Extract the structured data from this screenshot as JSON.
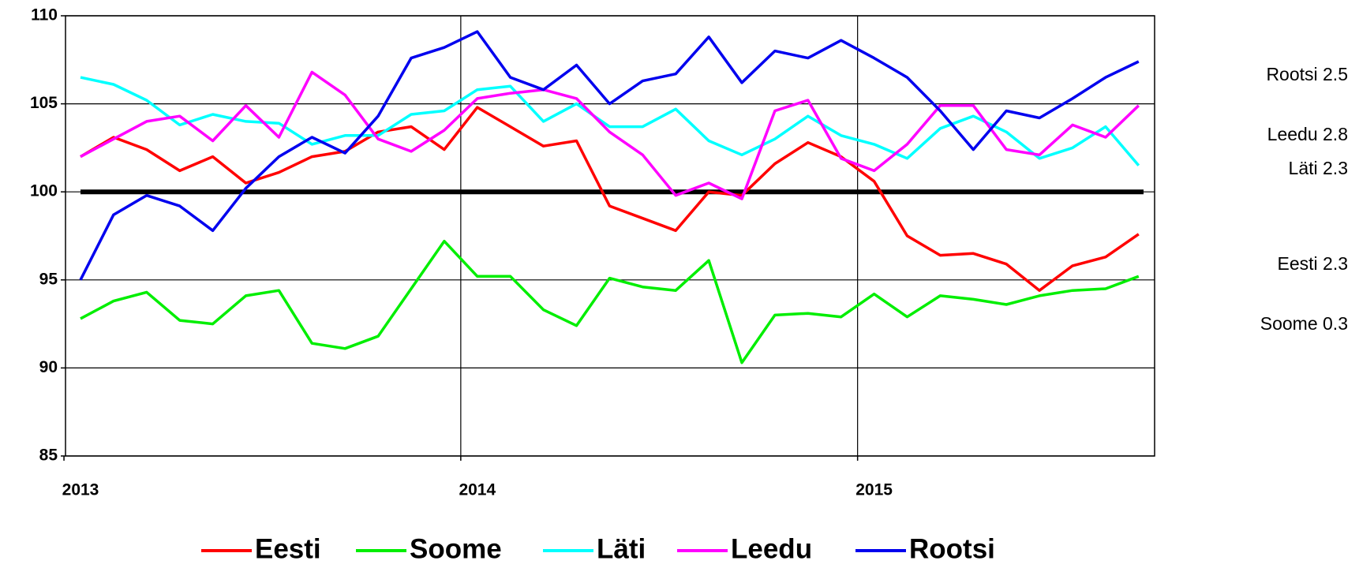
{
  "chart_data": {
    "type": "line",
    "categories": [
      "2013",
      null,
      null,
      null,
      null,
      null,
      null,
      null,
      null,
      null,
      null,
      null,
      "2014",
      null,
      null,
      null,
      null,
      null,
      null,
      null,
      null,
      null,
      null,
      null,
      "2015",
      null,
      null,
      null,
      null,
      null,
      null,
      null,
      null
    ],
    "series": [
      {
        "name": "Eesti",
        "color": "#ff0000",
        "values": [
          102.0,
          103.1,
          102.4,
          101.2,
          102.0,
          100.5,
          101.1,
          102.0,
          102.3,
          103.4,
          103.7,
          102.4,
          104.8,
          103.7,
          102.6,
          102.9,
          99.2,
          98.5,
          97.8,
          100.0,
          99.8,
          101.6,
          102.8,
          102.0,
          100.6,
          97.5,
          96.4,
          96.5,
          95.9,
          94.4,
          95.8,
          96.3,
          97.6
        ]
      },
      {
        "name": "Soome",
        "color": "#00ee00",
        "values": [
          92.8,
          93.8,
          94.3,
          92.7,
          92.5,
          94.1,
          94.4,
          91.4,
          91.1,
          91.8,
          94.5,
          97.2,
          95.2,
          95.2,
          93.3,
          92.4,
          95.1,
          94.6,
          94.4,
          96.1,
          90.3,
          93.0,
          93.1,
          92.9,
          94.2,
          92.9,
          94.1,
          93.9,
          93.6,
          94.1,
          94.4,
          94.5,
          95.2
        ]
      },
      {
        "name": "Läti",
        "color": "#00ffff",
        "values": [
          106.5,
          106.1,
          105.2,
          103.8,
          104.4,
          104.0,
          103.9,
          102.7,
          103.2,
          103.2,
          104.4,
          104.6,
          105.8,
          106.0,
          104.0,
          105.0,
          103.7,
          103.7,
          104.7,
          102.9,
          102.1,
          103.0,
          104.3,
          103.2,
          102.7,
          101.9,
          103.6,
          104.3,
          103.4,
          101.9,
          102.5,
          103.7,
          101.5
        ]
      },
      {
        "name": "Leedu",
        "color": "#ff00ff",
        "values": [
          102.0,
          103.0,
          104.0,
          104.3,
          102.9,
          104.9,
          103.1,
          106.8,
          105.5,
          103.0,
          102.3,
          103.5,
          105.3,
          105.6,
          105.8,
          105.3,
          103.4,
          102.1,
          99.8,
          100.5,
          99.6,
          104.6,
          105.2,
          101.9,
          101.2,
          102.7,
          104.9,
          104.9,
          102.4,
          102.1,
          103.8,
          103.1,
          104.9
        ]
      },
      {
        "name": "Rootsi",
        "color": "#0000ee",
        "values": [
          95.0,
          98.7,
          99.8,
          99.2,
          97.8,
          100.2,
          102.0,
          103.1,
          102.2,
          104.3,
          107.6,
          108.2,
          109.1,
          106.5,
          105.8,
          107.2,
          105.0,
          106.3,
          106.7,
          108.8,
          106.2,
          108.0,
          107.6,
          108.6,
          107.6,
          106.5,
          104.6,
          102.4,
          104.6,
          104.2,
          105.3,
          106.5,
          107.4
        ]
      }
    ],
    "ylim": [
      85,
      110
    ],
    "yticks": [
      85,
      90,
      95,
      100,
      105,
      110
    ],
    "grid": true,
    "reference_line": 100,
    "legend": "bottom",
    "annotations": [
      "Rootsi 2.5",
      "Leedu 2.8",
      "Läti 2.3",
      "Eesti 2.3",
      "Soome 0.3"
    ]
  }
}
